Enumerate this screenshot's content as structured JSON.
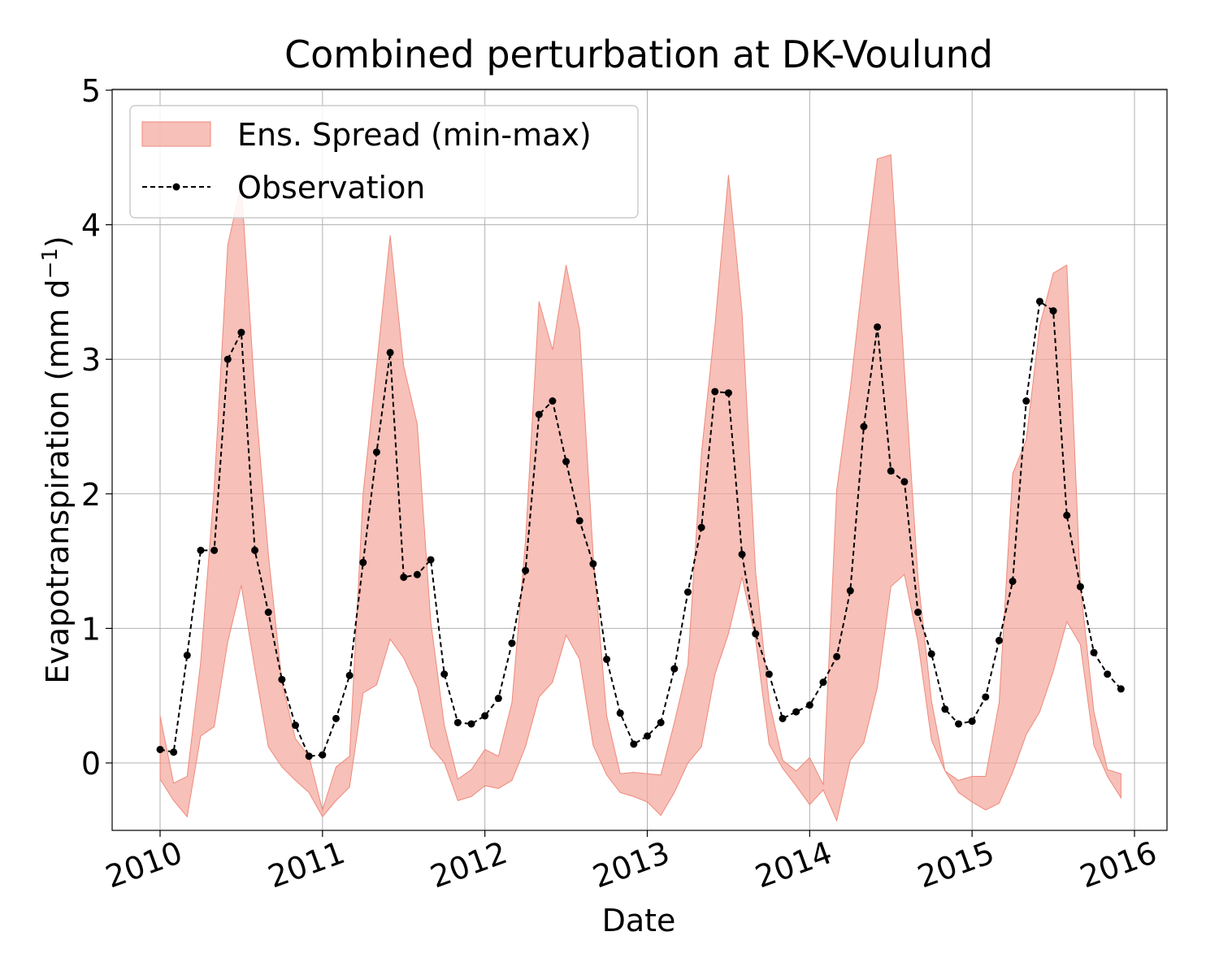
{
  "chart_data": {
    "type": "line",
    "title": "Combined perturbation at DK-Voulund",
    "xlabel": "Date",
    "ylabel": "Evapotranspiration  (mm d",
    "ylabel_sup": "−1",
    "ylabel_close": ")",
    "xlim": [
      "2010-01-01",
      "2016-01-01"
    ],
    "ylim": [
      -0.5,
      5
    ],
    "x_ticks": [
      "2010",
      "2011",
      "2012",
      "2013",
      "2014",
      "2015",
      "2016"
    ],
    "y_ticks": [
      "0",
      "1",
      "2",
      "3",
      "4",
      "5"
    ],
    "grid": true,
    "legend_position": "top-left",
    "legend": [
      "Ens. Spread (min-max)",
      "Observation"
    ],
    "colors": {
      "band_fill": "#f4a59a",
      "band_edge": "#ee8a7c",
      "observation": "#000000",
      "grid": "#b0b0b0"
    },
    "dates": [
      "2010-01",
      "2010-02",
      "2010-03",
      "2010-04",
      "2010-05",
      "2010-06",
      "2010-07",
      "2010-08",
      "2010-09",
      "2010-10",
      "2010-11",
      "2010-12",
      "2011-01",
      "2011-02",
      "2011-03",
      "2011-04",
      "2011-05",
      "2011-06",
      "2011-07",
      "2011-08",
      "2011-09",
      "2011-10",
      "2011-11",
      "2011-12",
      "2012-01",
      "2012-02",
      "2012-03",
      "2012-04",
      "2012-05",
      "2012-06",
      "2012-07",
      "2012-08",
      "2012-09",
      "2012-10",
      "2012-11",
      "2012-12",
      "2013-01",
      "2013-02",
      "2013-03",
      "2013-04",
      "2013-05",
      "2013-06",
      "2013-07",
      "2013-08",
      "2013-09",
      "2013-10",
      "2013-11",
      "2013-12",
      "2014-01",
      "2014-02",
      "2014-03",
      "2014-04",
      "2014-05",
      "2014-06",
      "2014-07",
      "2014-08",
      "2014-09",
      "2014-10",
      "2014-11",
      "2014-12",
      "2015-01",
      "2015-02",
      "2015-03",
      "2015-04",
      "2015-05",
      "2015-06",
      "2015-07",
      "2015-08",
      "2015-09",
      "2015-10",
      "2015-11",
      "2015-12"
    ],
    "series": [
      {
        "name": "Observation",
        "values": [
          0.1,
          0.08,
          0.8,
          1.58,
          1.58,
          3.0,
          3.2,
          1.58,
          1.12,
          0.62,
          0.28,
          0.05,
          0.06,
          0.33,
          0.65,
          1.49,
          2.31,
          3.05,
          1.38,
          1.4,
          1.51,
          0.66,
          0.3,
          0.29,
          0.35,
          0.48,
          0.89,
          1.43,
          2.59,
          2.69,
          2.24,
          1.8,
          1.48,
          0.77,
          0.37,
          0.14,
          0.2,
          0.3,
          0.7,
          1.27,
          1.75,
          2.76,
          2.75,
          1.55,
          0.96,
          0.66,
          0.33,
          0.38,
          0.43,
          0.6,
          0.79,
          1.28,
          2.5,
          3.24,
          2.17,
          2.09,
          1.12,
          0.81,
          0.4,
          0.29,
          0.31,
          0.49,
          0.91,
          1.35,
          2.69,
          3.43,
          3.36,
          1.84,
          1.31,
          0.82,
          0.66,
          0.55
        ]
      },
      {
        "name": "Ens. Spread (min-max)",
        "min": [
          -0.12,
          -0.28,
          -0.4,
          0.2,
          0.27,
          0.9,
          1.32,
          0.7,
          0.12,
          -0.03,
          -0.13,
          -0.22,
          -0.4,
          -0.28,
          -0.18,
          0.52,
          0.58,
          0.92,
          0.78,
          0.56,
          0.12,
          0.0,
          -0.28,
          -0.25,
          -0.17,
          -0.19,
          -0.13,
          0.12,
          0.49,
          0.6,
          0.95,
          0.77,
          0.13,
          -0.09,
          -0.22,
          -0.25,
          -0.29,
          -0.39,
          -0.22,
          0.0,
          0.12,
          0.66,
          0.96,
          1.38,
          0.92,
          0.14,
          -0.04,
          -0.17,
          -0.31,
          -0.2,
          -0.43,
          0.02,
          0.15,
          0.56,
          1.31,
          1.4,
          0.9,
          0.17,
          -0.06,
          -0.22,
          -0.29,
          -0.35,
          -0.3,
          -0.07,
          0.21,
          0.38,
          0.68,
          1.05,
          0.88,
          0.13,
          -0.1,
          -0.26
        ],
        "max": [
          0.35,
          -0.15,
          -0.1,
          0.75,
          2.05,
          3.85,
          4.3,
          2.75,
          1.55,
          0.6,
          0.18,
          0.05,
          -0.35,
          -0.03,
          0.05,
          2.0,
          2.95,
          3.92,
          2.95,
          2.52,
          1.05,
          0.28,
          -0.12,
          -0.05,
          0.1,
          0.05,
          0.45,
          1.65,
          3.43,
          3.07,
          3.7,
          3.22,
          1.55,
          0.35,
          -0.08,
          -0.07,
          -0.08,
          -0.09,
          0.3,
          0.73,
          2.3,
          3.25,
          4.37,
          3.35,
          1.42,
          0.46,
          0.02,
          -0.06,
          0.04,
          -0.16,
          2.03,
          2.78,
          3.67,
          4.49,
          4.52,
          2.92,
          1.38,
          0.46,
          -0.06,
          -0.13,
          -0.1,
          -0.1,
          0.45,
          2.15,
          2.4,
          3.25,
          3.64,
          3.7,
          1.32,
          0.38,
          -0.05,
          -0.08
        ]
      }
    ]
  }
}
